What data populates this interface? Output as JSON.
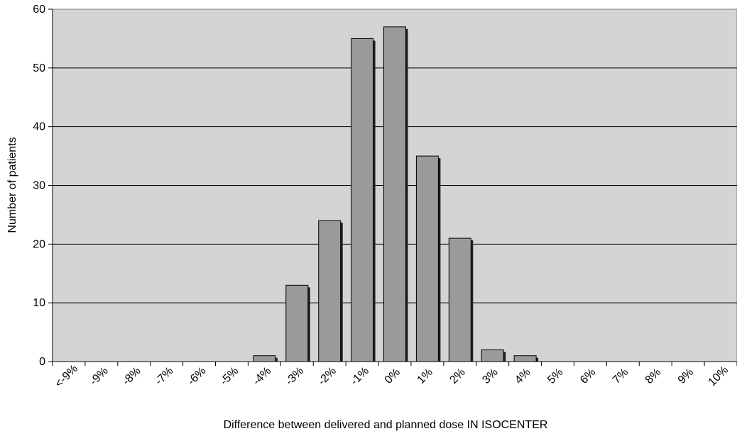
{
  "chart_data": {
    "type": "bar",
    "xlabel": "Difference between delivered and planned dose IN ISOCENTER",
    "ylabel": "Number of patients",
    "ylim": [
      0,
      60
    ],
    "yticks": [
      "0",
      "10",
      "20",
      "30",
      "40",
      "50",
      "60"
    ],
    "categories": [
      "<-9%",
      "-9%",
      "-8%",
      "-7%",
      "-6%",
      "-5%",
      "-4%",
      "-3%",
      "-2%",
      "-1%",
      "0%",
      "1%",
      "2%",
      "3%",
      "4%",
      "5%",
      "6%",
      "7%",
      "8%",
      "9%",
      "10%"
    ],
    "values": [
      0,
      0,
      0,
      0,
      0,
      0,
      1,
      13,
      24,
      55,
      57,
      35,
      21,
      2,
      1,
      0,
      0,
      0,
      0,
      0,
      0
    ],
    "grid": true,
    "legend": "none",
    "colors": {
      "plot_background": "#d4d4d4",
      "bar_fill": "#9a9a9a",
      "bar_shadow": "#1e1e1e",
      "gridline": "#000000"
    }
  }
}
